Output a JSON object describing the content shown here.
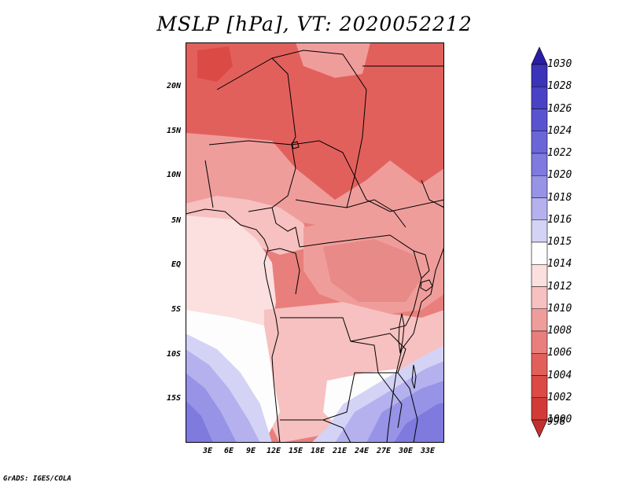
{
  "title": "MSLP [hPa], VT: 2020052212",
  "credit": "GrADS: IGES/COLA",
  "lat_labels": [
    "20N",
    "15N",
    "10N",
    "5N",
    "EQ",
    "5S",
    "10S",
    "15S"
  ],
  "lon_labels": [
    "3E",
    "6E",
    "9E",
    "12E",
    "15E",
    "18E",
    "21E",
    "24E",
    "27E",
    "30E",
    "33E"
  ],
  "colorbar": {
    "levels": [
      "1030",
      "1028",
      "1026",
      "1024",
      "1022",
      "1020",
      "1018",
      "1016",
      "1015",
      "1014",
      "1012",
      "1010",
      "1008",
      "1006",
      "1004",
      "1002",
      "1000",
      "998"
    ],
    "colors": [
      "#2a1ea3",
      "#3b33b8",
      "#4a42c6",
      "#5a53d0",
      "#6b66d8",
      "#7e7ade",
      "#9793e6",
      "#b4b1ee",
      "#d4d3f6",
      "#fdfdfd",
      "#fcdfdf",
      "#f6c1c0",
      "#ef9d9b",
      "#e87f7c",
      "#e2605c",
      "#dc4a46",
      "#d13a37",
      "#c2302e"
    ]
  },
  "chart_data": {
    "type": "heatmap",
    "variable": "MSLP",
    "units": "hPa",
    "valid_time": "2020052212",
    "lat_range": [
      -19,
      24
    ],
    "lon_range": [
      0,
      35
    ],
    "lat_ticks": [
      20,
      15,
      10,
      5,
      0,
      -5,
      -10,
      -15
    ],
    "lon_ticks": [
      3,
      6,
      9,
      12,
      15,
      18,
      21,
      24,
      27,
      30,
      33
    ],
    "legend": "right"
  }
}
